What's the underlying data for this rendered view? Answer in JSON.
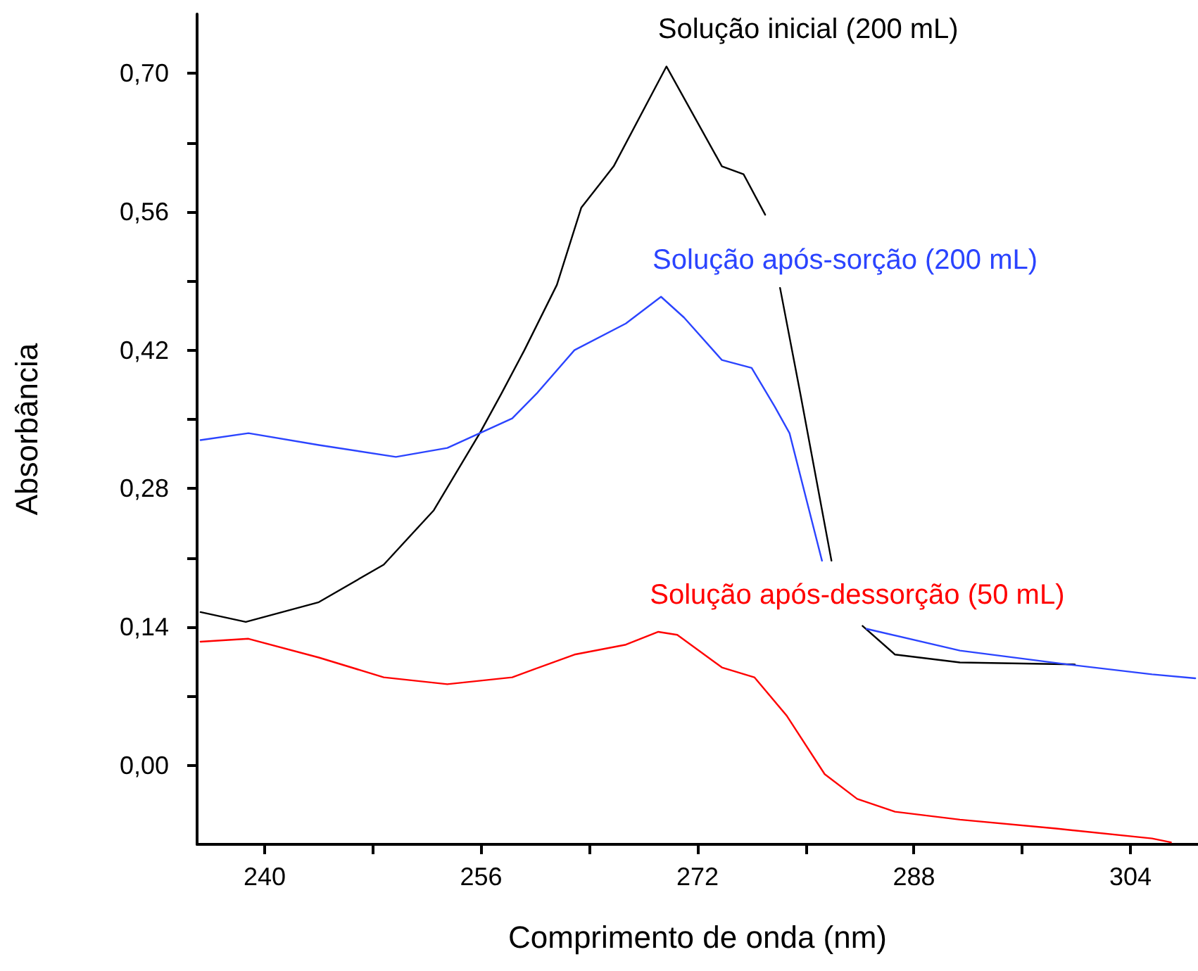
{
  "chart_data": {
    "type": "line",
    "xlabel": "Comprimento de onda (nm)",
    "ylabel": "Absorbância",
    "xlim": [
      235,
      309
    ],
    "ylim": [
      -0.08,
      0.76
    ],
    "xticks": [
      240,
      {
        "value": 248,
        "label": null
      },
      256,
      {
        "value": 264,
        "label": null
      },
      272,
      {
        "value": 280,
        "label": null
      },
      288,
      {
        "value": 296,
        "label": null
      },
      304
    ],
    "yticks": [
      {
        "value": 0,
        "label": "0,00"
      },
      {
        "value": 0.07,
        "label": null
      },
      {
        "value": 0.14,
        "label": "0,14"
      },
      {
        "value": 0.21,
        "label": null
      },
      {
        "value": 0.28,
        "label": "0,28"
      },
      {
        "value": 0.35,
        "label": null
      },
      {
        "value": 0.42,
        "label": "0,42"
      },
      {
        "value": 0.49,
        "label": null
      },
      {
        "value": 0.56,
        "label": "0,56"
      },
      {
        "value": 0.63,
        "label": null
      },
      {
        "value": 0.7,
        "label": "0,70"
      }
    ],
    "grid": false,
    "legend": false,
    "marker": "none",
    "line_style": "solid",
    "series": [
      {
        "name": "Solução inicial (200 mL)",
        "color": "#000000",
        "x": [
          235.25,
          238.6,
          244.0,
          248.8,
          252.5,
          255.9,
          257.5,
          259.2,
          261.6,
          263.4,
          265.8,
          269.7,
          273.8,
          275.4,
          277.0,
          277.5,
          278.1,
          279.6,
          281.9,
          283.0,
          284.2,
          286.6,
          291.4,
          299.9
        ],
        "values": [
          0.155,
          0.145,
          0.165,
          0.203,
          0.258,
          0.336,
          0.376,
          0.42,
          0.486,
          0.564,
          0.606,
          0.707,
          0.606,
          0.598,
          0.557,
          null,
          0.483,
          0.376,
          0.207,
          null,
          0.141,
          0.112,
          0.104,
          0.102
        ]
      },
      {
        "name": "Solução após-sorção (200 mL)",
        "color": "#2b44ff",
        "x": [
          235.25,
          238.8,
          244.0,
          249.7,
          253.5,
          255.9,
          258.3,
          260.1,
          262.9,
          266.7,
          269.3,
          271.0,
          273.8,
          276.0,
          277.7,
          278.8,
          281.2,
          283.0,
          284.5,
          291.4,
          299.4,
          305.6,
          308.8
        ],
        "values": [
          0.329,
          0.336,
          0.324,
          0.312,
          0.321,
          0.336,
          0.351,
          0.376,
          0.42,
          0.447,
          0.474,
          0.453,
          0.41,
          0.402,
          0.363,
          0.336,
          0.207,
          null,
          0.138,
          0.116,
          0.102,
          0.092,
          0.088
        ]
      },
      {
        "name": "Solução após-dessorção (50 mL)",
        "color": "#ff0000",
        "x": [
          235.25,
          238.8,
          244.0,
          248.8,
          253.5,
          258.3,
          262.9,
          266.7,
          269.1,
          270.5,
          273.8,
          276.2,
          278.6,
          281.4,
          283.8,
          286.6,
          291.4,
          298.5,
          305.6,
          307.0
        ],
        "values": [
          0.125,
          0.128,
          0.109,
          0.089,
          0.082,
          0.089,
          0.112,
          0.122,
          0.135,
          0.132,
          0.099,
          0.089,
          0.05,
          -0.009,
          -0.034,
          -0.047,
          -0.055,
          -0.064,
          -0.074,
          -0.078
        ]
      }
    ]
  }
}
